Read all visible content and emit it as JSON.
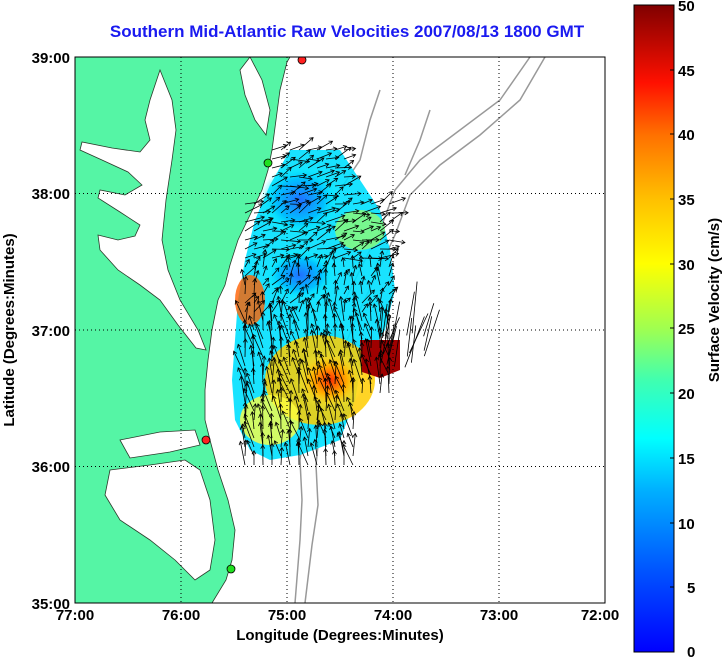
{
  "title": "Southern Mid-Atlantic Raw Velocities 2007/08/13 1800 GMT",
  "axes": {
    "xlabel": "Longitude (Degrees:Minutes)",
    "ylabel": "Latitude (Degrees:Minutes)",
    "x_ticks": [
      "77:00",
      "76:00",
      "75:00",
      "74:00",
      "73:00",
      "72:00"
    ],
    "y_ticks": [
      "39:00",
      "38:00",
      "37:00",
      "36:00",
      "35:00"
    ],
    "xlim": [
      -77,
      -72
    ],
    "ylim": [
      35,
      39
    ],
    "grid": "dotted"
  },
  "colorbar": {
    "label": "Surface Velocity (cm/s)",
    "ticks": [
      "50",
      "45",
      "40",
      "35",
      "30",
      "25",
      "20",
      "15",
      "10",
      "5",
      "0"
    ],
    "range": [
      0,
      50
    ],
    "colormap": "jet"
  },
  "colors": {
    "land": "#55f5a5",
    "water": "#ffffff",
    "bathymetry": "#999999",
    "title": "#1a1af0",
    "station_red": "#ff2020",
    "station_green": "#20e020"
  },
  "chart_data": {
    "type": "heatmap",
    "title": "Southern Mid-Atlantic Raw Velocities 2007/08/13 1800 GMT",
    "xlabel": "Longitude (Degrees:Minutes)",
    "ylabel": "Latitude (Degrees:Minutes)",
    "xlim": [
      -77,
      -72
    ],
    "ylim": [
      35,
      39
    ],
    "colorbar_label": "Surface Velocity (cm/s)",
    "colorbar_range": [
      0,
      50
    ],
    "stations": [
      {
        "lon": -74.88,
        "lat": 39.0,
        "color": "red"
      },
      {
        "lon": -75.1,
        "lat": 38.22,
        "color": "green"
      },
      {
        "lon": -75.7,
        "lat": 36.18,
        "color": "red"
      },
      {
        "lon": -75.53,
        "lat": 35.25,
        "color": "green"
      }
    ],
    "velocity_samples": [
      {
        "lon": -75.0,
        "lat": 38.3,
        "speed": 12
      },
      {
        "lon": -74.6,
        "lat": 38.0,
        "speed": 22
      },
      {
        "lon": -75.2,
        "lat": 37.7,
        "speed": 10
      },
      {
        "lon": -74.4,
        "lat": 37.5,
        "speed": 14
      },
      {
        "lon": -75.0,
        "lat": 37.4,
        "speed": 6
      },
      {
        "lon": -75.4,
        "lat": 37.2,
        "speed": 32
      },
      {
        "lon": -74.7,
        "lat": 37.05,
        "speed": 8
      },
      {
        "lon": -75.2,
        "lat": 36.8,
        "speed": 22
      },
      {
        "lon": -74.7,
        "lat": 36.65,
        "speed": 40
      },
      {
        "lon": -74.0,
        "lat": 36.85,
        "speed": 50
      },
      {
        "lon": -75.3,
        "lat": 36.4,
        "speed": 26
      },
      {
        "lon": -74.9,
        "lat": 36.3,
        "speed": 18
      }
    ]
  }
}
